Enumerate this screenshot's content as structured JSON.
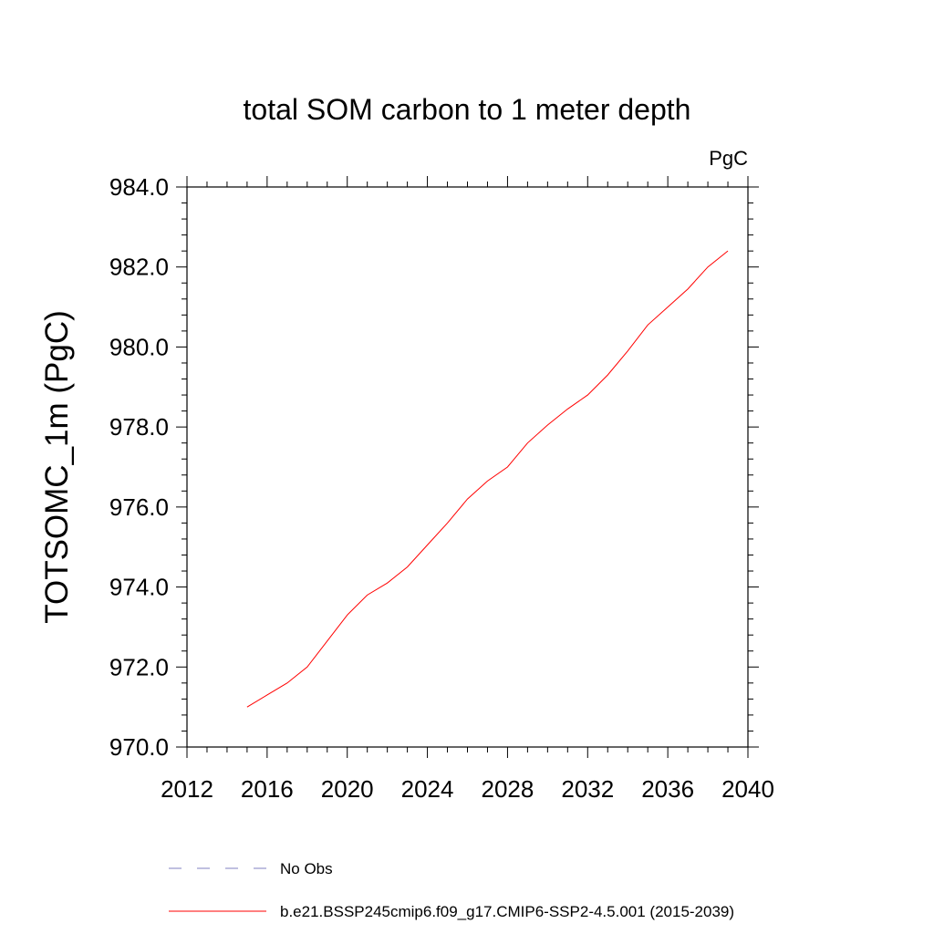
{
  "chart_data": {
    "type": "line",
    "title": "total SOM carbon to 1 meter depth",
    "units": "PgC",
    "ylabel": "TOTSOMC_1m  (PgC)",
    "xlabel": "",
    "xlim": [
      2012,
      2040
    ],
    "ylim": [
      970,
      984
    ],
    "xticks": [
      2012,
      2016,
      2020,
      2024,
      2028,
      2032,
      2036,
      2040
    ],
    "yticks": [
      970,
      972,
      974,
      976,
      978,
      980,
      982,
      984
    ],
    "ytick_labels": [
      "970.0",
      "972.0",
      "974.0",
      "976.0",
      "978.0",
      "980.0",
      "982.0",
      "984.0"
    ],
    "grid": false,
    "legend_position": "bottom",
    "series": [
      {
        "name": "b.e21.BSSP245cmip6.f09_g17.CMIP6-SSP2-4.5.001 (2015-2039)",
        "color": "#ff0000",
        "dash": "solid",
        "x": [
          2015,
          2016,
          2017,
          2018,
          2019,
          2020,
          2021,
          2022,
          2023,
          2024,
          2025,
          2026,
          2027,
          2028,
          2029,
          2030,
          2031,
          2032,
          2033,
          2034,
          2035,
          2036,
          2037,
          2038,
          2039
        ],
        "values": [
          971.0,
          971.3,
          971.6,
          972.0,
          972.65,
          973.3,
          973.8,
          974.1,
          974.5,
          975.05,
          975.6,
          976.2,
          976.65,
          977.0,
          977.6,
          978.05,
          978.45,
          978.8,
          979.3,
          979.9,
          980.55,
          981.0,
          981.45,
          982.0,
          982.4
        ]
      }
    ],
    "legend": [
      {
        "label": "No Obs",
        "color": "#8080c0",
        "dash": "dashed"
      },
      {
        "label": "b.e21.BSSP245cmip6.f09_g17.CMIP6-SSP2-4.5.001 (2015-2039)",
        "color": "#ff0000",
        "dash": "solid"
      }
    ]
  }
}
